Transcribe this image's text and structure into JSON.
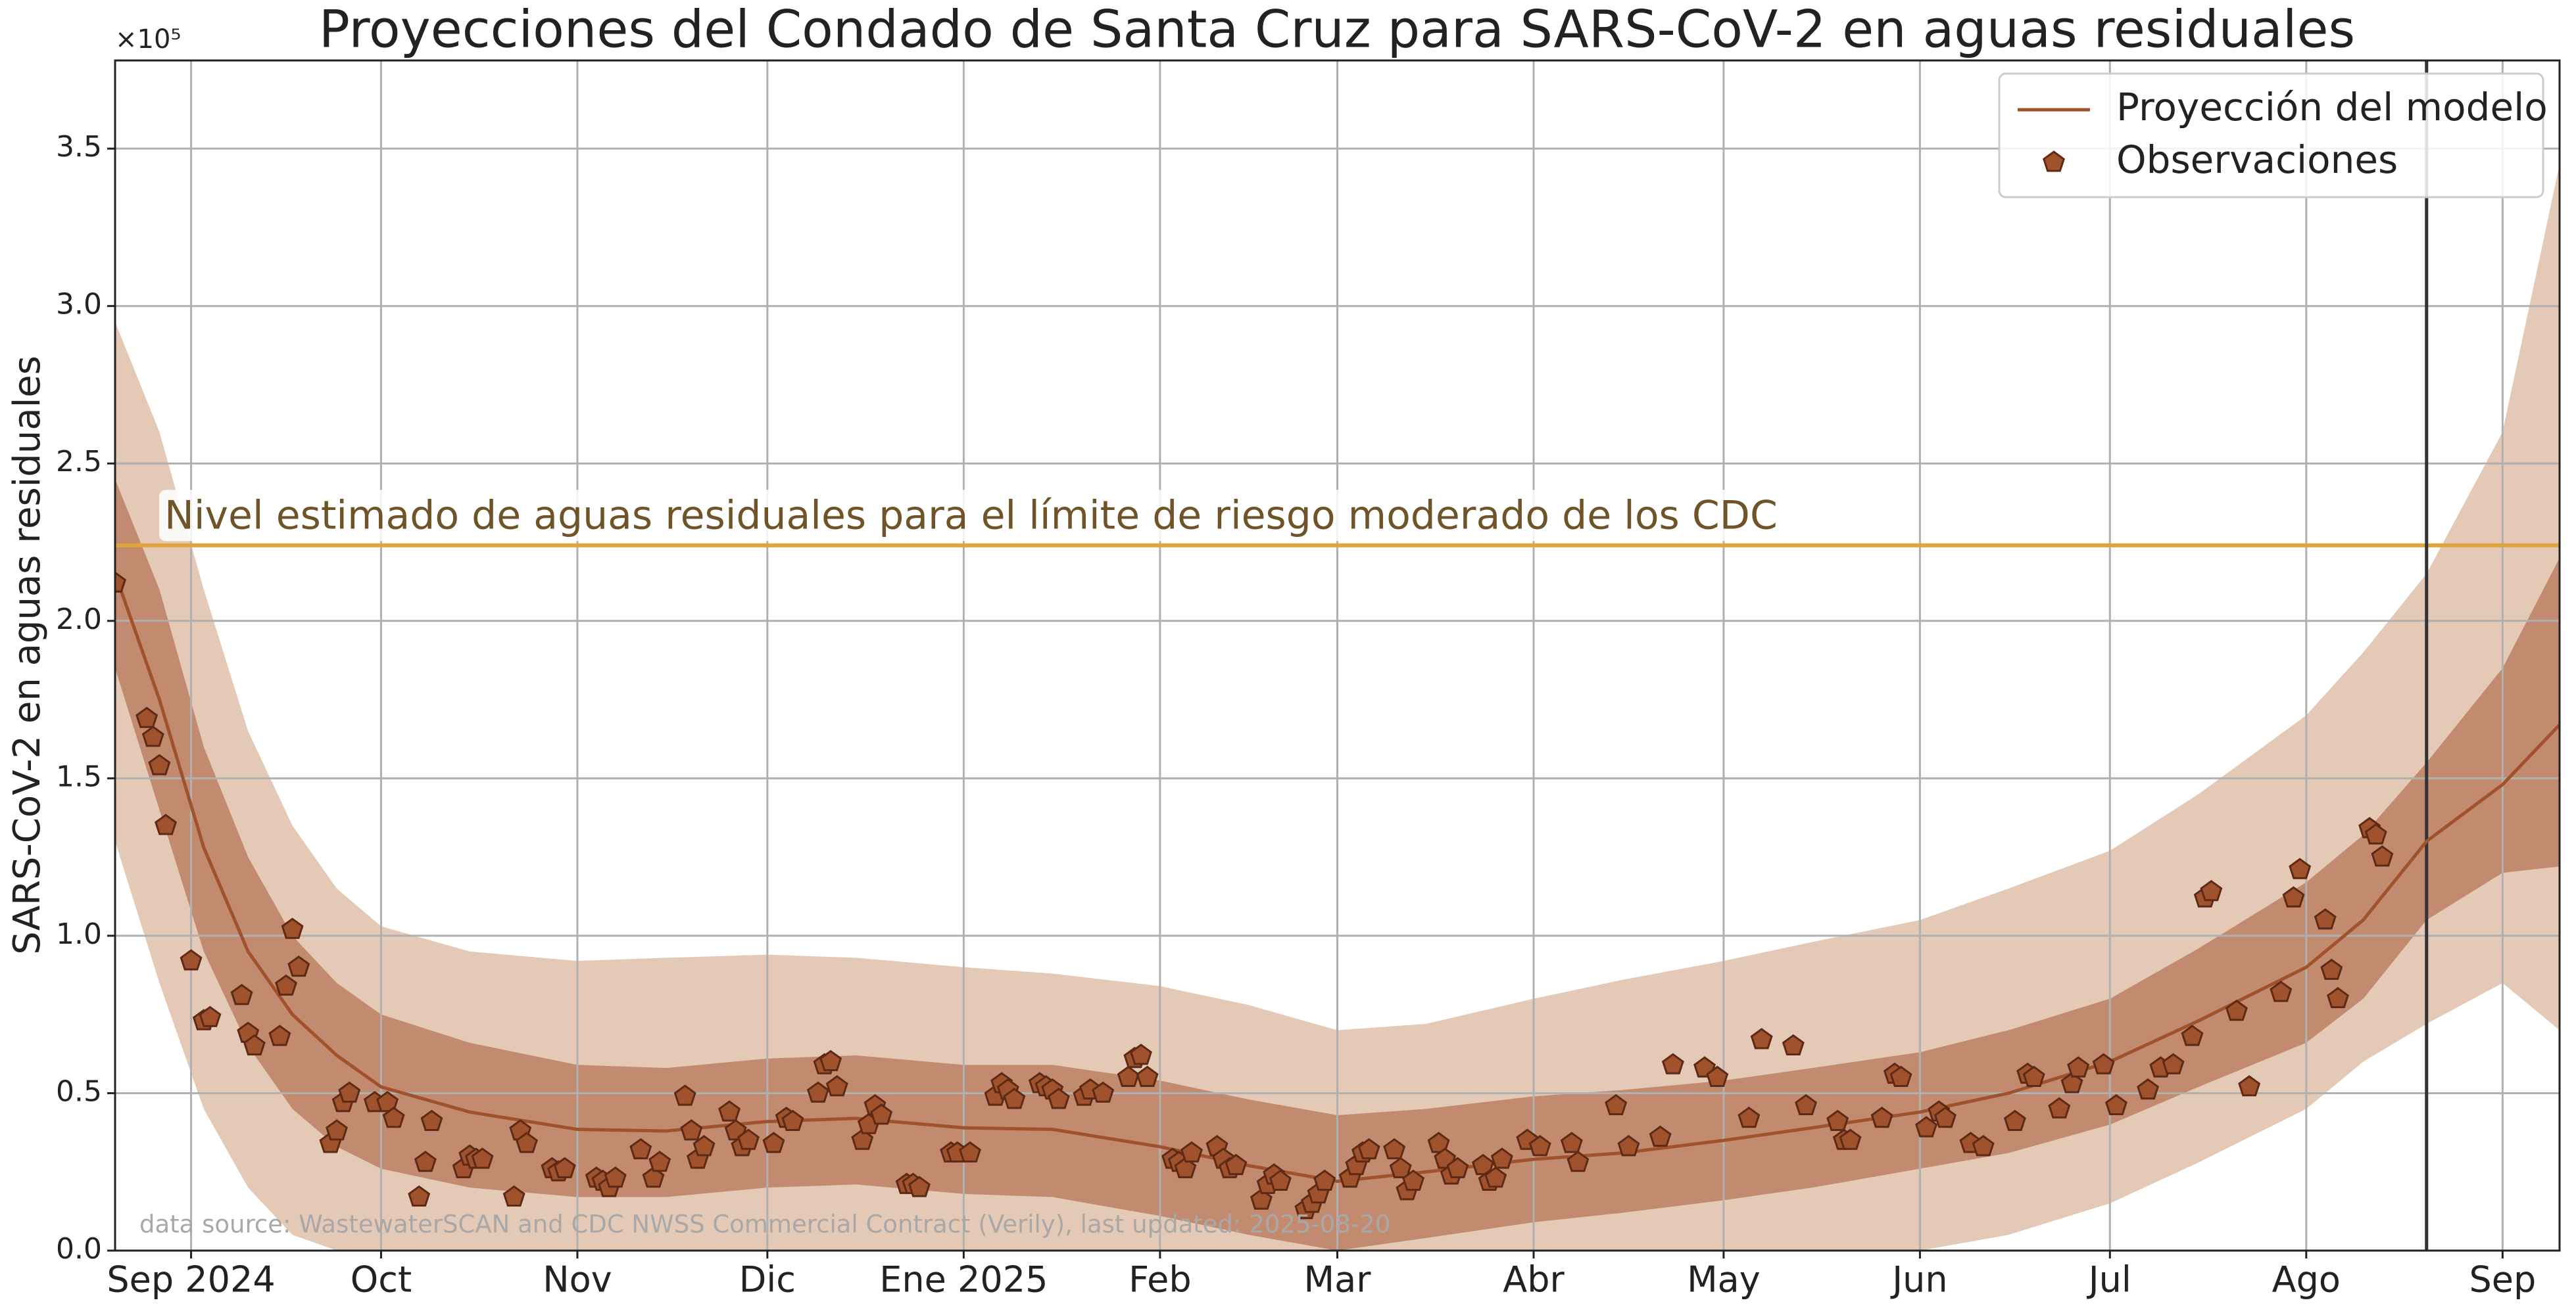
{
  "chart_data": {
    "type": "line",
    "title": "Proyecciones del Condado de Santa Cruz para SARS-CoV-2 en aguas residuales",
    "ylabel": "SARS-CoV-2 en aguas residuales",
    "y_offset_label": "×10⁵",
    "source": "data source: WastewaterSCAN and CDC NWSS Commercial Contract (Verily), last updated: 2025-08-20",
    "xlim": [
      "2024-08-20",
      "2025-09-10"
    ],
    "xticks": [
      {
        "value": "2024-09-01",
        "label": "Sep 2024"
      },
      {
        "value": "2024-10-01",
        "label": "Oct"
      },
      {
        "value": "2024-11-01",
        "label": "Nov"
      },
      {
        "value": "2024-12-01",
        "label": "Dic"
      },
      {
        "value": "2025-01-01",
        "label": "Ene 2025"
      },
      {
        "value": "2025-02-01",
        "label": "Feb"
      },
      {
        "value": "2025-03-01",
        "label": "Mar"
      },
      {
        "value": "2025-04-01",
        "label": "Abr"
      },
      {
        "value": "2025-05-01",
        "label": "May"
      },
      {
        "value": "2025-06-01",
        "label": "Jun"
      },
      {
        "value": "2025-07-01",
        "label": "Jul"
      },
      {
        "value": "2025-08-01",
        "label": "Ago"
      },
      {
        "value": "2025-09-01",
        "label": "Sep"
      }
    ],
    "ylim": [
      0,
      378000
    ],
    "yticks": [
      {
        "value": 0,
        "label": "0.0"
      },
      {
        "value": 50000,
        "label": "0.5"
      },
      {
        "value": 100000,
        "label": "1.0"
      },
      {
        "value": 150000,
        "label": "1.5"
      },
      {
        "value": 200000,
        "label": "2.0"
      },
      {
        "value": 250000,
        "label": "2.5"
      },
      {
        "value": 300000,
        "label": "3.0"
      },
      {
        "value": 350000,
        "label": "3.5"
      }
    ],
    "grid": true,
    "legend": "upper right",
    "x": [
      "2024-08-20",
      "2024-08-27",
      "2024-09-03",
      "2024-09-10",
      "2024-09-17",
      "2024-09-24",
      "2024-10-01",
      "2024-10-15",
      "2024-11-01",
      "2024-11-15",
      "2024-12-01",
      "2024-12-15",
      "2025-01-01",
      "2025-01-15",
      "2025-02-01",
      "2025-02-15",
      "2025-03-01",
      "2025-03-15",
      "2025-04-01",
      "2025-04-15",
      "2025-05-01",
      "2025-05-15",
      "2025-06-01",
      "2025-06-15",
      "2025-07-01",
      "2025-07-15",
      "2025-08-01",
      "2025-08-10",
      "2025-08-20",
      "2025-09-01",
      "2025-09-10"
    ],
    "bands": [
      {
        "color": "#e5c9b7",
        "lower": [
          130000,
          85000,
          45000,
          20000,
          5000,
          0,
          0,
          0,
          0,
          0,
          0,
          0,
          0,
          0,
          0,
          0,
          0,
          0,
          0,
          0,
          0,
          0,
          0,
          5000,
          15000,
          28000,
          45000,
          60000,
          72000,
          85000,
          70000
        ],
        "upper": [
          295000,
          260000,
          210000,
          165000,
          135000,
          115000,
          103000,
          95000,
          92000,
          93000,
          94000,
          93000,
          90000,
          88000,
          84000,
          78000,
          70000,
          72000,
          80000,
          86000,
          92000,
          98000,
          105000,
          115000,
          127000,
          145000,
          170000,
          190000,
          215000,
          260000,
          345000
        ]
      },
      {
        "color": "#c28b70",
        "lower": [
          185000,
          140000,
          95000,
          65000,
          45000,
          33000,
          26000,
          20000,
          17000,
          17000,
          20000,
          21000,
          18000,
          17000,
          11000,
          5000,
          0,
          4000,
          9000,
          12000,
          16000,
          20000,
          26000,
          31000,
          40000,
          52000,
          66000,
          80000,
          105000,
          120000,
          122000
        ],
        "upper": [
          245000,
          210000,
          160000,
          125000,
          100000,
          85000,
          75000,
          66000,
          59000,
          58000,
          61000,
          62000,
          59000,
          59000,
          54000,
          48000,
          43000,
          45000,
          49000,
          51000,
          54000,
          58000,
          63000,
          70000,
          80000,
          96000,
          117000,
          132000,
          155000,
          185000,
          220000
        ]
      }
    ],
    "series": [
      {
        "name": "Proyección del modelo",
        "color": "#a0522d",
        "values": [
          215000,
          175000,
          128000,
          95000,
          75000,
          62000,
          52000,
          44000,
          38500,
          38000,
          41000,
          42000,
          39000,
          38500,
          33000,
          27000,
          22000,
          25000,
          29000,
          31000,
          35000,
          39000,
          44000,
          50000,
          60000,
          73000,
          90000,
          105000,
          130000,
          148000,
          167000
        ]
      }
    ],
    "observations": {
      "name": "Observaciones",
      "color": "#a0522d",
      "edgecolor": "#5e2a16",
      "x": [
        "2024-08-20",
        "2024-08-25",
        "2024-08-26",
        "2024-08-27",
        "2024-08-28",
        "2024-09-01",
        "2024-09-03",
        "2024-09-04",
        "2024-09-09",
        "2024-09-10",
        "2024-09-11",
        "2024-09-15",
        "2024-09-16",
        "2024-09-17",
        "2024-09-18",
        "2024-09-23",
        "2024-09-24",
        "2024-09-25",
        "2024-09-26",
        "2024-09-30",
        "2024-10-02",
        "2024-10-03",
        "2024-10-07",
        "2024-10-08",
        "2024-10-09",
        "2024-10-14",
        "2024-10-15",
        "2024-10-16",
        "2024-10-17",
        "2024-10-22",
        "2024-10-23",
        "2024-10-24",
        "2024-10-28",
        "2024-10-29",
        "2024-10-30",
        "2024-11-04",
        "2024-11-05",
        "2024-11-06",
        "2024-11-07",
        "2024-11-11",
        "2024-11-13",
        "2024-11-14",
        "2024-11-18",
        "2024-11-19",
        "2024-11-20",
        "2024-11-21",
        "2024-11-25",
        "2024-11-26",
        "2024-11-27",
        "2024-11-28",
        "2024-12-02",
        "2024-12-04",
        "2024-12-05",
        "2024-12-09",
        "2024-12-10",
        "2024-12-11",
        "2024-12-12",
        "2024-12-16",
        "2024-12-17",
        "2024-12-18",
        "2024-12-19",
        "2024-12-23",
        "2024-12-24",
        "2024-12-25",
        "2024-12-30",
        "2024-12-31",
        "2025-01-02",
        "2025-01-06",
        "2025-01-07",
        "2025-01-08",
        "2025-01-09",
        "2025-01-13",
        "2025-01-14",
        "2025-01-15",
        "2025-01-16",
        "2025-01-20",
        "2025-01-21",
        "2025-01-23",
        "2025-01-27",
        "2025-01-28",
        "2025-01-29",
        "2025-01-30",
        "2025-02-03",
        "2025-02-04",
        "2025-02-05",
        "2025-02-06",
        "2025-02-10",
        "2025-02-11",
        "2025-02-12",
        "2025-02-13",
        "2025-02-17",
        "2025-02-18",
        "2025-02-19",
        "2025-02-20",
        "2025-02-24",
        "2025-02-25",
        "2025-02-26",
        "2025-02-27",
        "2025-03-03",
        "2025-03-04",
        "2025-03-05",
        "2025-03-06",
        "2025-03-10",
        "2025-03-11",
        "2025-03-12",
        "2025-03-13",
        "2025-03-17",
        "2025-03-18",
        "2025-03-19",
        "2025-03-20",
        "2025-03-24",
        "2025-03-25",
        "2025-03-26",
        "2025-03-27",
        "2025-03-31",
        "2025-04-02",
        "2025-04-07",
        "2025-04-08",
        "2025-04-14",
        "2025-04-16",
        "2025-04-21",
        "2025-04-23",
        "2025-04-28",
        "2025-04-30",
        "2025-05-05",
        "2025-05-07",
        "2025-05-12",
        "2025-05-14",
        "2025-05-19",
        "2025-05-20",
        "2025-05-21",
        "2025-05-26",
        "2025-05-28",
        "2025-05-29",
        "2025-06-02",
        "2025-06-04",
        "2025-06-05",
        "2025-06-09",
        "2025-06-11",
        "2025-06-16",
        "2025-06-18",
        "2025-06-19",
        "2025-06-23",
        "2025-06-25",
        "2025-06-26",
        "2025-06-30",
        "2025-07-02",
        "2025-07-07",
        "2025-07-09",
        "2025-07-11",
        "2025-07-14",
        "2025-07-16",
        "2025-07-17",
        "2025-07-21",
        "2025-07-23",
        "2025-07-28",
        "2025-07-30",
        "2025-07-31",
        "2025-08-04",
        "2025-08-05",
        "2025-08-06",
        "2025-08-11",
        "2025-08-12",
        "2025-08-13"
      ],
      "values": [
        212000,
        169000,
        163000,
        154000,
        135000,
        92000,
        73000,
        74000,
        81000,
        69000,
        65000,
        68000,
        84000,
        102000,
        90000,
        34000,
        38000,
        47000,
        50000,
        47000,
        47000,
        42000,
        17000,
        28000,
        41000,
        26000,
        30000,
        29000,
        29000,
        17000,
        38000,
        34000,
        26000,
        25000,
        26000,
        23000,
        22000,
        20000,
        23000,
        32000,
        23000,
        28000,
        49000,
        38000,
        29000,
        33000,
        44000,
        38000,
        33000,
        35000,
        34000,
        42000,
        41000,
        50000,
        59000,
        60000,
        52000,
        35000,
        40000,
        46000,
        43000,
        21000,
        21000,
        20000,
        31000,
        31000,
        31000,
        49000,
        53000,
        51000,
        48000,
        53000,
        52000,
        51000,
        48000,
        49000,
        51000,
        50000,
        55000,
        61000,
        62000,
        55000,
        29000,
        28000,
        26000,
        31000,
        33000,
        29000,
        26000,
        27000,
        16000,
        21000,
        24000,
        22000,
        13000,
        15000,
        18000,
        22000,
        23000,
        27000,
        31000,
        32000,
        32000,
        26000,
        19000,
        22000,
        34000,
        29000,
        24000,
        26000,
        27000,
        22000,
        23000,
        29000,
        35000,
        33000,
        34000,
        28000,
        46000,
        33000,
        36000,
        59000,
        58000,
        55000,
        42000,
        67000,
        65000,
        46000,
        41000,
        35000,
        35000,
        42000,
        56000,
        55000,
        39000,
        44000,
        42000,
        34000,
        33000,
        41000,
        56000,
        55000,
        45000,
        53000,
        58000,
        59000,
        46000,
        51000,
        58000,
        59000,
        68000,
        112000,
        114000,
        76000,
        52000,
        82000,
        112000,
        121000,
        105000,
        89000,
        80000,
        134000,
        132000,
        125000
      ]
    },
    "hlines": [
      {
        "value": 224000,
        "color": "#e0a53a",
        "label": "Nivel estimado de aguas residuales para el límite de riesgo moderado de los CDC",
        "label_color": "#6e5428"
      }
    ],
    "vlines": [
      {
        "value": "2025-08-20",
        "color": "#333333"
      }
    ]
  }
}
